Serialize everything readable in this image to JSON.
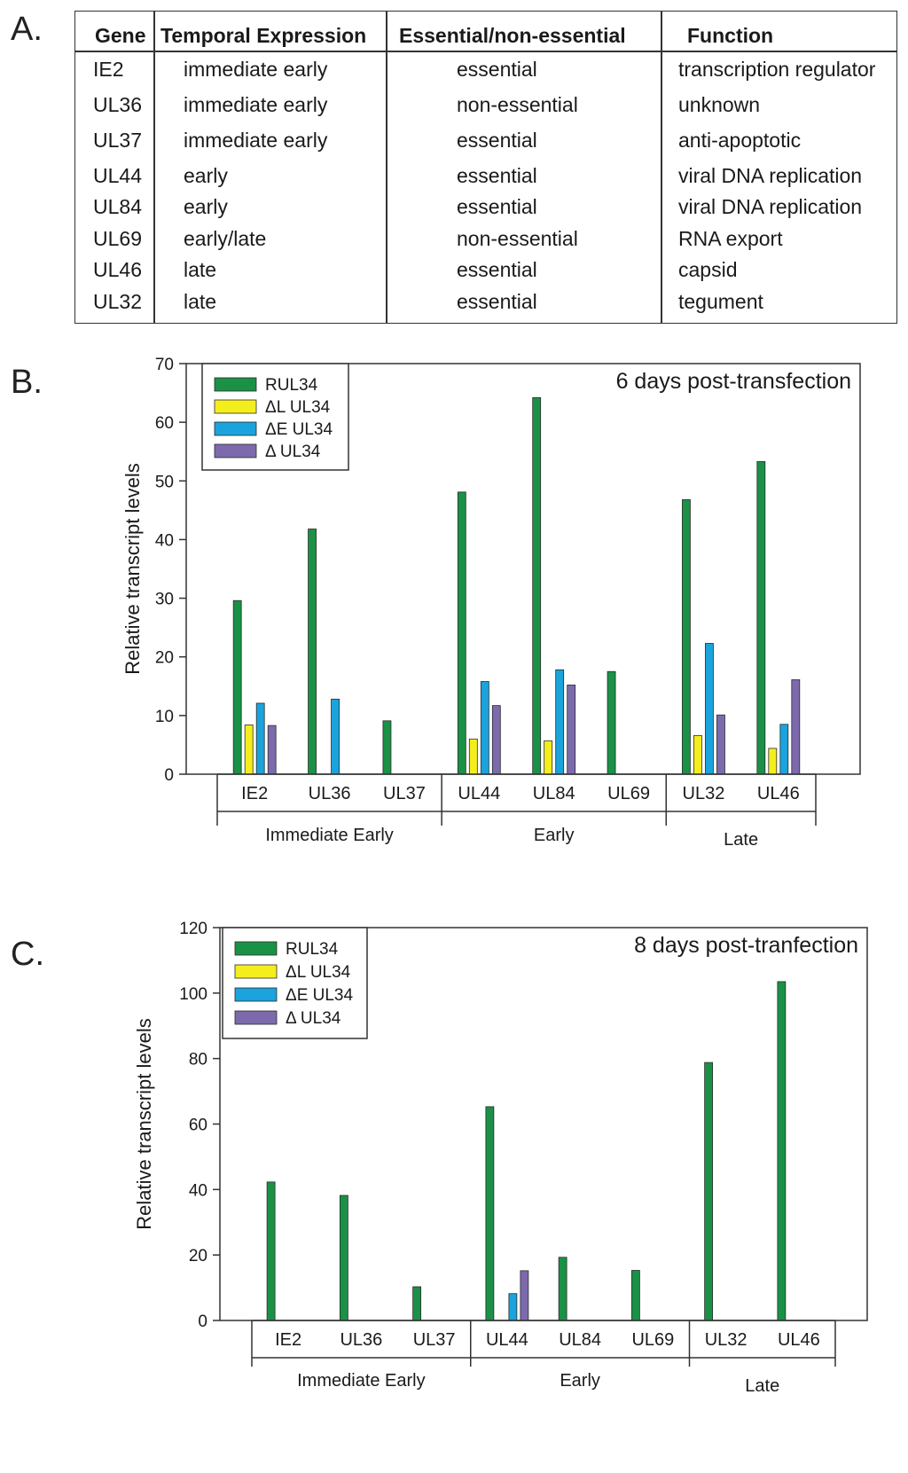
{
  "panel_labels": [
    "A.",
    "B.",
    "C."
  ],
  "table": {
    "headers": [
      "Gene",
      "Temporal Expression",
      "Essential/non-essential",
      "Function"
    ],
    "rows": [
      [
        "IE2",
        "immediate early",
        "essential",
        "transcription regulator"
      ],
      [
        "UL36",
        "immediate early",
        "non-essential",
        "unknown"
      ],
      [
        "UL37",
        "immediate early",
        "essential",
        "anti-apoptotic"
      ],
      [
        "UL44",
        "early",
        "essential",
        "viral DNA replication"
      ],
      [
        "UL84",
        "early",
        "essential",
        "viral DNA replication"
      ],
      [
        "UL69",
        "early/late",
        "non-essential",
        "RNA export"
      ],
      [
        "UL46",
        "late",
        "essential",
        "capsid"
      ],
      [
        "UL32",
        "late",
        "essential",
        "tegument"
      ]
    ]
  },
  "colors": {
    "RUL34": "#1a9146",
    "dL_UL34": "#f5ee1d",
    "dE_UL34": "#1aa3dc",
    "d_UL34": "#7c6aad"
  },
  "chart_data": [
    {
      "type": "bar",
      "title": "6 days post-transfection",
      "xlabel": "",
      "ylabel": "Relative transcript levels",
      "ylim": [
        0,
        70
      ],
      "yticks": [
        0,
        10,
        20,
        30,
        40,
        50,
        60,
        70
      ],
      "categories": [
        "IE2",
        "UL36",
        "UL37",
        "UL44",
        "UL84",
        "UL69",
        "UL32",
        "UL46"
      ],
      "groups": [
        {
          "label": "Immediate Early",
          "categories": [
            "IE2",
            "UL36",
            "UL37"
          ]
        },
        {
          "label": "Early",
          "categories": [
            "UL44",
            "UL84",
            "UL69"
          ]
        },
        {
          "label": "Late",
          "categories": [
            "UL32",
            "UL46"
          ]
        }
      ],
      "series": [
        {
          "name": "RUL34",
          "color_key": "RUL34",
          "values": [
            29.6,
            41.8,
            9.1,
            48.1,
            64.2,
            17.5,
            46.8,
            53.3
          ]
        },
        {
          "name": "ΔL UL34",
          "color_key": "dL_UL34",
          "values": [
            8.4,
            0,
            0,
            6.0,
            5.7,
            0,
            6.6,
            4.4
          ]
        },
        {
          "name": "ΔE UL34",
          "color_key": "dE_UL34",
          "values": [
            12.1,
            12.8,
            0,
            15.8,
            17.8,
            0,
            22.3,
            8.5
          ]
        },
        {
          "name": "Δ UL34",
          "color_key": "d_UL34",
          "values": [
            8.3,
            0,
            0,
            11.7,
            15.2,
            0,
            10.1,
            16.1
          ]
        }
      ],
      "legend": "top-left",
      "grid": false
    },
    {
      "type": "bar",
      "title": "8 days post-tranfection",
      "xlabel": "",
      "ylabel": "Relative transcript levels",
      "ylim": [
        0,
        120
      ],
      "yticks": [
        0,
        20,
        40,
        60,
        80,
        100,
        120
      ],
      "categories": [
        "IE2",
        "UL36",
        "UL37",
        "UL44",
        "UL84",
        "UL69",
        "UL32",
        "UL46"
      ],
      "groups": [
        {
          "label": "Immediate Early",
          "categories": [
            "IE2",
            "UL36",
            "UL37"
          ]
        },
        {
          "label": "Early",
          "categories": [
            "UL44",
            "UL84",
            "UL69"
          ]
        },
        {
          "label": "Late",
          "categories": [
            "UL32",
            "UL46"
          ]
        }
      ],
      "series": [
        {
          "name": "RUL34",
          "color_key": "RUL34",
          "values": [
            42.3,
            38.2,
            10.3,
            65.3,
            19.3,
            15.3,
            78.8,
            103.5
          ]
        },
        {
          "name": "ΔL UL34",
          "color_key": "dL_UL34",
          "values": [
            0,
            0,
            0,
            0,
            0,
            0,
            0,
            0
          ]
        },
        {
          "name": "ΔE UL34",
          "color_key": "dE_UL34",
          "values": [
            0,
            0,
            0,
            8.2,
            0,
            0,
            0,
            0
          ]
        },
        {
          "name": "Δ UL34",
          "color_key": "d_UL34",
          "values": [
            0,
            0,
            0,
            15.2,
            0,
            0,
            0,
            0
          ]
        }
      ],
      "legend": "top-left",
      "grid": false
    }
  ]
}
